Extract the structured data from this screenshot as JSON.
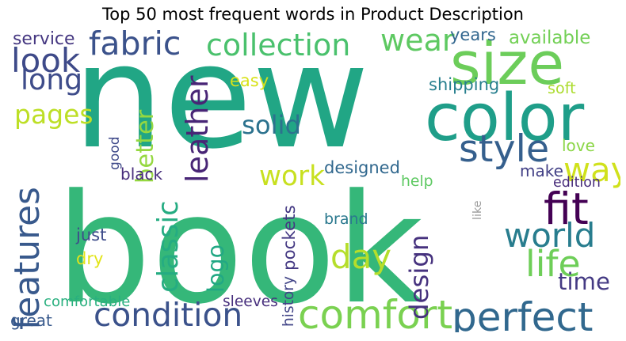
{
  "title": "Top 50 most frequent words in Product Description",
  "words": [
    {
      "text": "new",
      "color": "#21a685"
    },
    {
      "text": "book",
      "color": "#35b779"
    },
    {
      "text": "size",
      "color": "#6ccd5a"
    },
    {
      "text": "color",
      "color": "#1f9e89"
    },
    {
      "text": "perfect",
      "color": "#31688e"
    },
    {
      "text": "condition",
      "color": "#3b528b"
    },
    {
      "text": "comfort",
      "color": "#7ad151"
    },
    {
      "text": "look",
      "color": "#3e4a89"
    },
    {
      "text": "collection",
      "color": "#4ac16d"
    },
    {
      "text": "fabric",
      "color": "#3b528b"
    },
    {
      "text": "wear",
      "color": "#5ec962"
    },
    {
      "text": "style",
      "color": "#355f8d"
    },
    {
      "text": "fit",
      "color": "#440154"
    },
    {
      "text": "life",
      "color": "#6ece58"
    },
    {
      "text": "world",
      "color": "#287d8e"
    },
    {
      "text": "features",
      "color": "#38598c"
    },
    {
      "text": "leather",
      "color": "#482576"
    },
    {
      "text": "classic",
      "color": "#25ac82"
    },
    {
      "text": "design",
      "color": "#46327e"
    },
    {
      "text": "logo",
      "color": "#22a884"
    },
    {
      "text": "way",
      "color": "#d0e11c"
    },
    {
      "text": "long",
      "color": "#3e4c8a"
    },
    {
      "text": "pages",
      "color": "#bddf26"
    },
    {
      "text": "solid",
      "color": "#2c728e"
    },
    {
      "text": "better",
      "color": "#95d840"
    },
    {
      "text": "work",
      "color": "#c8e020"
    },
    {
      "text": "day",
      "color": "#b5de2b"
    },
    {
      "text": "time",
      "color": "#443a83"
    },
    {
      "text": "history",
      "color": "#414487"
    },
    {
      "text": "pockets",
      "color": "#443983"
    },
    {
      "text": "service",
      "color": "#453781"
    },
    {
      "text": "years",
      "color": "#31668e"
    },
    {
      "text": "available",
      "color": "#73d056"
    },
    {
      "text": "easy",
      "color": "#d8e219"
    },
    {
      "text": "shipping",
      "color": "#277f8e"
    },
    {
      "text": "soft",
      "color": "#addc30"
    },
    {
      "text": "love",
      "color": "#8bd646"
    },
    {
      "text": "good",
      "color": "#3e4989"
    },
    {
      "text": "black",
      "color": "#472d7b"
    },
    {
      "text": "designed",
      "color": "#31688e"
    },
    {
      "text": "make",
      "color": "#424086"
    },
    {
      "text": "edition",
      "color": "#472c7a"
    },
    {
      "text": "help",
      "color": "#5ec962"
    },
    {
      "text": "like",
      "color": "#9a9a9a"
    },
    {
      "text": "brand",
      "color": "#2a788e"
    },
    {
      "text": "just",
      "color": "#3e4c8a"
    },
    {
      "text": "dry",
      "color": "#e2e418"
    },
    {
      "text": "comfortable",
      "color": "#2ab07f"
    },
    {
      "text": "sleeves",
      "color": "#472f7d"
    },
    {
      "text": "great",
      "color": "#38598c"
    }
  ]
}
